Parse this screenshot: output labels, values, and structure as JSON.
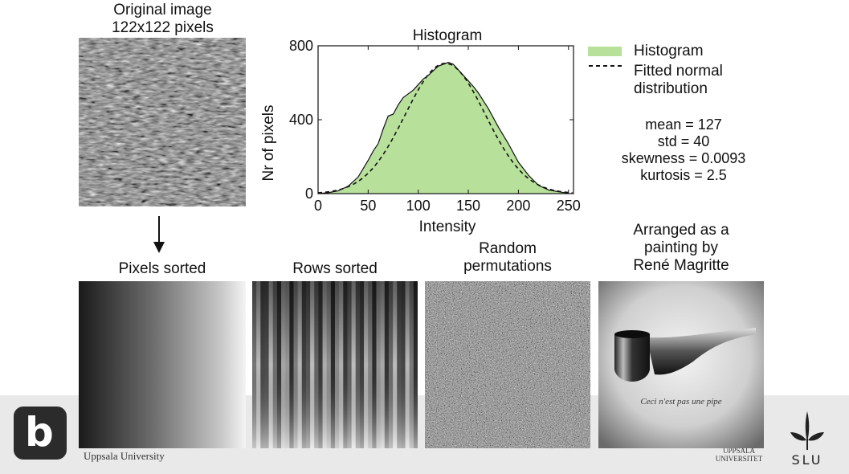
{
  "top_caption": {
    "line1": "Original image",
    "line2": "122x122 pixels"
  },
  "panels": {
    "pixels_sorted": "Pixels sorted",
    "rows_sorted": "Rows sorted",
    "random": {
      "line1": "Random",
      "line2": "permutations"
    },
    "magritte": {
      "line1": "Arranged as a",
      "line2": "painting by",
      "line3": "René Magritte",
      "inscription": "Ceci n'est pas une pipe"
    }
  },
  "legend": {
    "histogram": "Histogram",
    "fitted_line1": "Fitted normal",
    "fitted_line2": "distribution"
  },
  "stats": {
    "mean": "mean = 127",
    "std": "std = 40",
    "skewness": "skewness = 0.0093",
    "kurtosis": "kurtosis = 2.5"
  },
  "footer": {
    "uppsala": "Uppsala University",
    "uu_line1": "UPPSALA",
    "uu_line2": "UNIVERSITET",
    "slu": "SLU",
    "b_logo": "b"
  },
  "colors": {
    "fill": "#b7e19b",
    "line": "#1a1a1a",
    "footer": "#e9e9e9"
  },
  "chart_data": {
    "type": "area",
    "title": "Histogram",
    "xlabel": "Intensity",
    "ylabel": "Nr of pixels",
    "xlim": [
      0,
      255
    ],
    "ylim": [
      0,
      800
    ],
    "xticks": [
      0,
      50,
      100,
      150,
      200,
      250
    ],
    "yticks": [
      0,
      400,
      800
    ],
    "series": [
      {
        "name": "Histogram",
        "style": "filled area",
        "x": [
          0,
          10,
          20,
          30,
          40,
          50,
          55,
          60,
          65,
          70,
          75,
          80,
          85,
          90,
          95,
          100,
          105,
          110,
          115,
          120,
          125,
          130,
          135,
          140,
          145,
          150,
          155,
          160,
          170,
          180,
          190,
          200,
          210,
          220,
          230,
          240,
          250
        ],
        "y": [
          0,
          5,
          15,
          40,
          90,
          180,
          230,
          270,
          350,
          420,
          430,
          480,
          520,
          540,
          560,
          590,
          620,
          640,
          665,
          690,
          700,
          710,
          700,
          670,
          640,
          610,
          580,
          545,
          460,
          360,
          270,
          170,
          100,
          45,
          20,
          10,
          2
        ]
      },
      {
        "name": "Fitted normal distribution",
        "style": "dashed",
        "mean": 127,
        "std": 40,
        "peak": 705
      }
    ]
  }
}
